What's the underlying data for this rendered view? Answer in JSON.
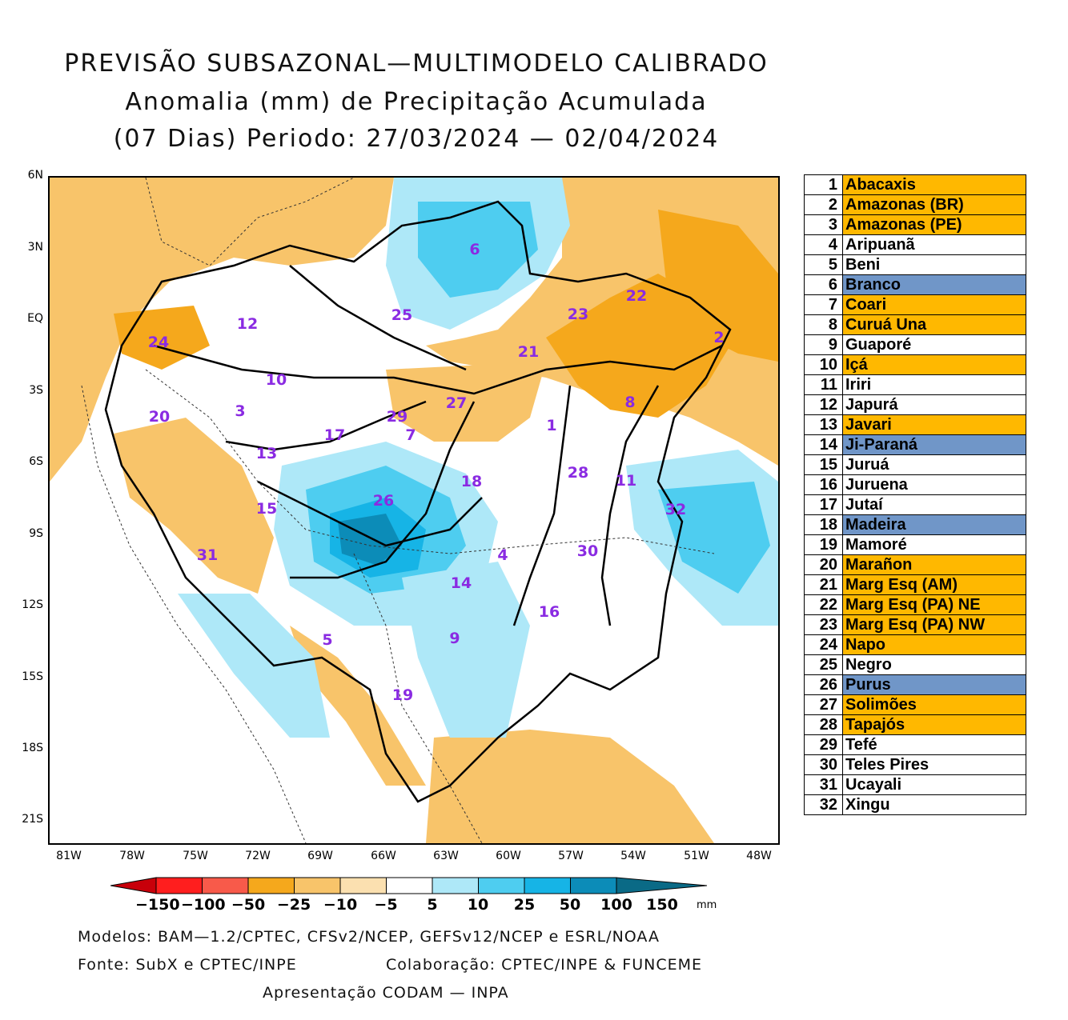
{
  "title": {
    "line1": "PREVISÃO SUBSAZONAL—MULTIMODELO CALIBRADO",
    "line2": "Anomalia (mm) de Precipitação Acumulada",
    "line3": "(07 Dias) Periodo: 27/03/2024 — 02/04/2024"
  },
  "axes": {
    "y_labels": [
      "6N",
      "3N",
      "EQ",
      "3S",
      "6S",
      "9S",
      "12S",
      "15S",
      "18S",
      "21S"
    ],
    "x_labels": [
      "81W",
      "78W",
      "75W",
      "72W",
      "69W",
      "66W",
      "63W",
      "60W",
      "57W",
      "54W",
      "51W",
      "48W"
    ]
  },
  "colors": {
    "dry_strong": "#f5a81c",
    "dry_medium": "#f8c46a",
    "dry_light": "#fbe0b0",
    "wet_light": "#aee8f8",
    "wet_medium": "#4ecdf0",
    "wet_strong": "#16b4e6",
    "wet_very": "#0c8cb8",
    "wet_extreme": "#0a6a86",
    "legend_orange": "#ffb800",
    "legend_blue": "#7096c8",
    "basin_number": "#8a2be2"
  },
  "basins": [
    {
      "num": "1",
      "name": "Abacaxis",
      "status": "orange"
    },
    {
      "num": "2",
      "name": "Amazonas (BR)",
      "status": "orange"
    },
    {
      "num": "3",
      "name": "Amazonas (PE)",
      "status": "orange"
    },
    {
      "num": "4",
      "name": "Aripuanã",
      "status": "white"
    },
    {
      "num": "5",
      "name": "Beni",
      "status": "white"
    },
    {
      "num": "6",
      "name": "Branco",
      "status": "blue"
    },
    {
      "num": "7",
      "name": "Coari",
      "status": "orange"
    },
    {
      "num": "8",
      "name": "Curuá Una",
      "status": "orange"
    },
    {
      "num": "9",
      "name": "Guaporé",
      "status": "white"
    },
    {
      "num": "10",
      "name": "Içá",
      "status": "orange"
    },
    {
      "num": "11",
      "name": "Iriri",
      "status": "white"
    },
    {
      "num": "12",
      "name": "Japurá",
      "status": "white"
    },
    {
      "num": "13",
      "name": "Javari",
      "status": "orange"
    },
    {
      "num": "14",
      "name": "Ji-Paraná",
      "status": "blue"
    },
    {
      "num": "15",
      "name": "Juruá",
      "status": "white"
    },
    {
      "num": "16",
      "name": "Juruena",
      "status": "white"
    },
    {
      "num": "17",
      "name": "Jutaí",
      "status": "white"
    },
    {
      "num": "18",
      "name": "Madeira",
      "status": "blue"
    },
    {
      "num": "19",
      "name": "Mamoré",
      "status": "white"
    },
    {
      "num": "20",
      "name": "Marañon",
      "status": "orange"
    },
    {
      "num": "21",
      "name": "Marg Esq (AM)",
      "status": "orange"
    },
    {
      "num": "22",
      "name": "Marg Esq (PA) NE",
      "status": "orange"
    },
    {
      "num": "23",
      "name": "Marg Esq (PA) NW",
      "status": "orange"
    },
    {
      "num": "24",
      "name": "Napo",
      "status": "orange"
    },
    {
      "num": "25",
      "name": "Negro",
      "status": "white"
    },
    {
      "num": "26",
      "name": "Purus",
      "status": "blue"
    },
    {
      "num": "27",
      "name": "Solimões",
      "status": "orange"
    },
    {
      "num": "28",
      "name": "Tapajós",
      "status": "orange"
    },
    {
      "num": "29",
      "name": "Tefé",
      "status": "white"
    },
    {
      "num": "30",
      "name": "Teles Pires",
      "status": "white"
    },
    {
      "num": "31",
      "name": "Ucayali",
      "status": "white"
    },
    {
      "num": "32",
      "name": "Xingu",
      "status": "white"
    }
  ],
  "colorbar": {
    "labels": [
      "−150",
      "−100",
      "−50",
      "−25",
      "−10",
      "−5",
      "5",
      "10",
      "25",
      "50",
      "100",
      "150"
    ],
    "unit": "mm",
    "bins": [
      "#c8000a",
      "#ff1e1e",
      "#f85a4a",
      "#f5a81c",
      "#f8c46a",
      "#fbe0b0",
      "#ffffff",
      "#aee8f8",
      "#4ecdf0",
      "#16b4e6",
      "#0c8cb8",
      "#0a6a86"
    ]
  },
  "footer": {
    "models": "Modelos: BAM—1.2/CPTEC, CFSv2/NCEP, GEFSv12/NCEP e ESRL/NOAA",
    "source": "Fonte: SubX e CPTEC/INPE",
    "collab": "Colaboração: CPTEC/INPE & FUNCEME",
    "presentation": "Apresentação CODAM — INPA"
  }
}
